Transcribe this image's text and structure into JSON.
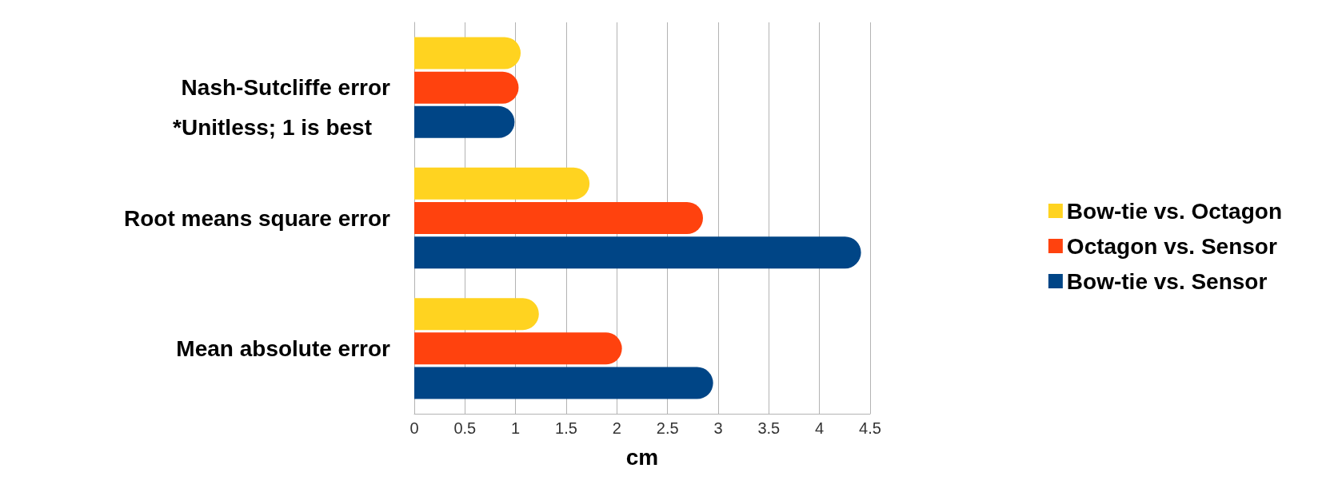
{
  "chart_data": {
    "type": "bar",
    "orientation": "horizontal",
    "categories": [
      "Nash-Sutcliffe error",
      "Root means square error",
      "Mean absolute error"
    ],
    "series": [
      {
        "name": "Bow-tie vs. Octagon",
        "color": "#ffd320",
        "values": [
          1.05,
          1.73,
          1.23
        ]
      },
      {
        "name": "Octagon vs. Sensor",
        "color": "#ff420e",
        "values": [
          1.03,
          2.85,
          2.05
        ]
      },
      {
        "name": "Bow-tie vs. Sensor",
        "color": "#004586",
        "values": [
          0.99,
          4.41,
          2.95
        ]
      }
    ],
    "xlim": [
      0,
      4.5
    ],
    "xticks": [
      0,
      0.5,
      1,
      1.5,
      2,
      2.5,
      3,
      3.5,
      4,
      4.5
    ],
    "xlabel": "cm",
    "grid": "x",
    "legend": "right",
    "annotations": [
      "*Unitless; 1 is best"
    ]
  }
}
